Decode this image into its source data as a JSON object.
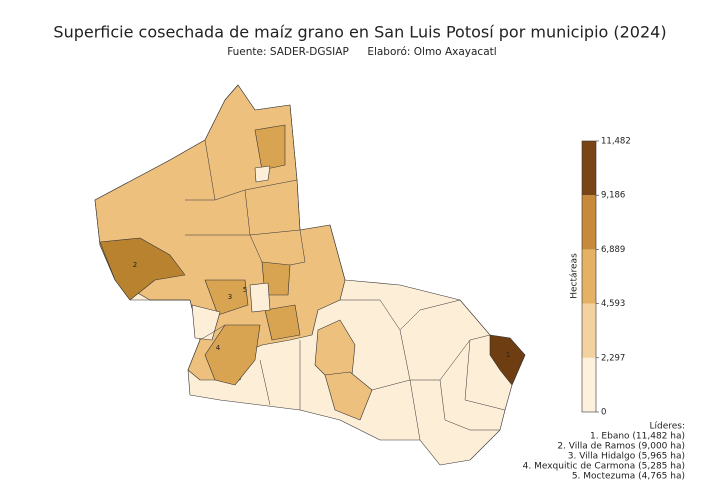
{
  "title": "Superficie cosechada de maíz grano en San Luis Potosí por municipio (2024)",
  "source": "Fuente: SADER-DGSIAP",
  "author": "Elaboró: Olmo Axayacatl",
  "colorbar": {
    "label": "Hectáreas",
    "range": [
      0,
      11482
    ],
    "ticks": [
      0,
      {
        "value": 2297,
        "label": "2,297"
      },
      {
        "value": 4593,
        "label": "4,593"
      },
      {
        "value": 6889,
        "label": "6,889"
      },
      {
        "value": 9186,
        "label": "9,186"
      },
      {
        "value": 11482,
        "label": "11,482"
      }
    ],
    "colors": [
      "#fdf0dc",
      "#f2d3a0",
      "#e4b165",
      "#c68a3a",
      "#7a4514"
    ]
  },
  "leaders": {
    "title": "Líderes:",
    "items": [
      "1. Ebano (11,482 ha)",
      "2. Villa de Ramos (9,000 ha)",
      "3. Villa Hidalgo (5,965 ha)",
      "4. Mexquitic de Carmona (5,285 ha)",
      "5. Moctezuma (4,765 ha)"
    ]
  },
  "map_labels": [
    "1",
    "2",
    "3",
    "4",
    "5"
  ]
}
